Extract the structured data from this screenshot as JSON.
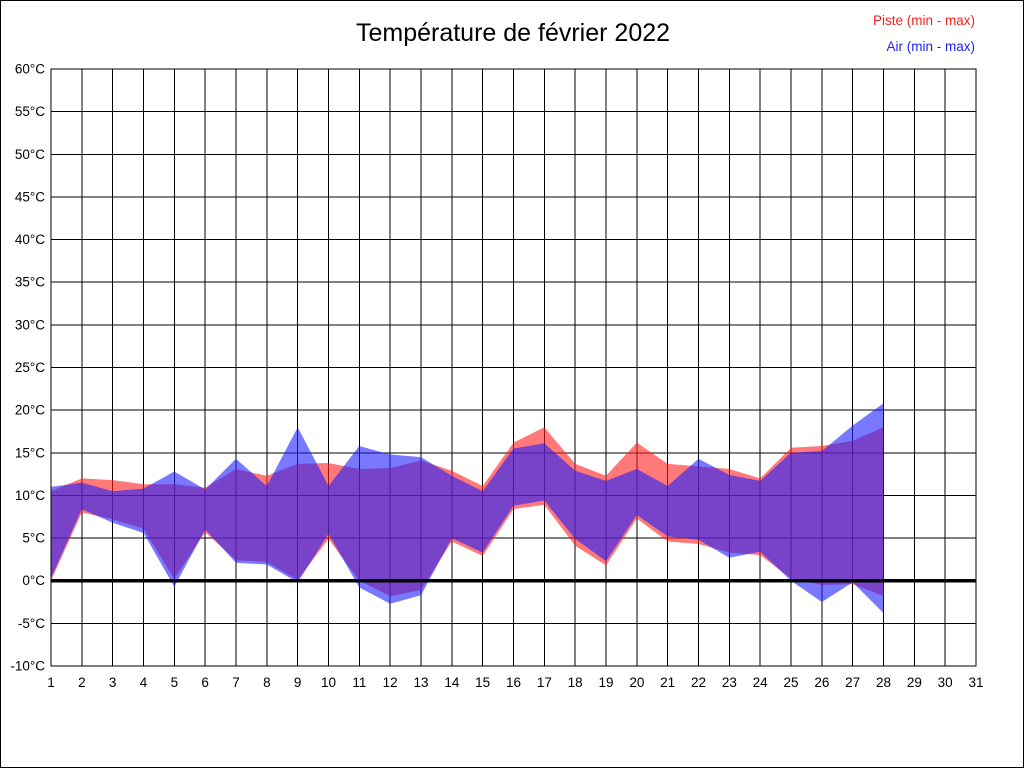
{
  "title": "Température de février 2022",
  "legend": [
    {
      "label": "Piste (min - max)",
      "color": "#ee2222"
    },
    {
      "label": "Air (min - max)",
      "color": "#2222ee"
    }
  ],
  "chart_data": {
    "type": "area",
    "subtype": "min-max range bands (two overlapping filled bands)",
    "title": "Température de février 2022",
    "grid": true,
    "zero_line_bold": true,
    "legend_position": "top-right",
    "x_axis": {
      "range": [
        1,
        31
      ],
      "ticks": [
        1,
        2,
        3,
        4,
        5,
        6,
        7,
        8,
        9,
        10,
        11,
        12,
        13,
        14,
        15,
        16,
        17,
        18,
        19,
        20,
        21,
        22,
        23,
        24,
        25,
        26,
        27,
        28,
        29,
        30,
        31
      ]
    },
    "y_axis": {
      "range": [
        -10,
        60
      ],
      "unit": "°C",
      "tick_step": 5,
      "tick_labels": [
        "-10°C",
        "-5°C",
        "0°C",
        "5°C",
        "10°C",
        "15°C",
        "20°C",
        "25°C",
        "30°C",
        "35°C",
        "40°C",
        "45°C",
        "50°C",
        "55°C",
        "60°C"
      ]
    },
    "x": [
      1,
      2,
      3,
      4,
      5,
      6,
      7,
      8,
      9,
      10,
      11,
      12,
      13,
      14,
      15,
      16,
      17,
      18,
      19,
      20,
      21,
      22,
      23,
      24,
      25,
      26,
      27,
      28
    ],
    "series": [
      {
        "name": "Piste (min - max)",
        "color": "#ff2020",
        "fill_opacity": 0.6,
        "min": [
          0,
          8,
          7.2,
          6.1,
          0.2,
          5.7,
          2.4,
          2.2,
          0.1,
          4.9,
          0,
          -1.8,
          -1.1,
          4.6,
          2.9,
          8.4,
          8.9,
          4.1,
          1.8,
          7.3,
          4.6,
          4.3,
          3.3,
          3,
          0.3,
          -0.5,
          -0.4,
          -1.8
        ],
        "max": [
          10.5,
          12,
          11.8,
          11.3,
          11.3,
          10.9,
          13.1,
          12.3,
          13.7,
          13.8,
          13.1,
          13.2,
          14.1,
          12.9,
          11.1,
          16.2,
          18,
          13.7,
          12.3,
          16.2,
          13.7,
          13.4,
          13.1,
          12,
          15.6,
          15.8,
          16.4,
          18
        ]
      },
      {
        "name": "Air (min - max)",
        "color": "#2020ff",
        "fill_opacity": 0.6,
        "min": [
          0.3,
          8.4,
          6.8,
          5.6,
          -0.7,
          6,
          2.1,
          1.9,
          -0.2,
          5.5,
          -0.8,
          -2.7,
          -1.7,
          5,
          3.3,
          8.8,
          9.4,
          4.9,
          2.3,
          7.7,
          5.2,
          4.8,
          2.7,
          3.4,
          0,
          -2.5,
          -0.2,
          -3.8
        ],
        "max": [
          11,
          11.5,
          10.5,
          10.8,
          12.8,
          10.7,
          14.3,
          11.1,
          18,
          11.1,
          15.8,
          14.8,
          14.5,
          12.3,
          10.5,
          15.5,
          16.1,
          12.9,
          11.7,
          13.1,
          11.1,
          14.3,
          12.4,
          11.7,
          15,
          15.2,
          18.2,
          20.8
        ]
      }
    ]
  }
}
